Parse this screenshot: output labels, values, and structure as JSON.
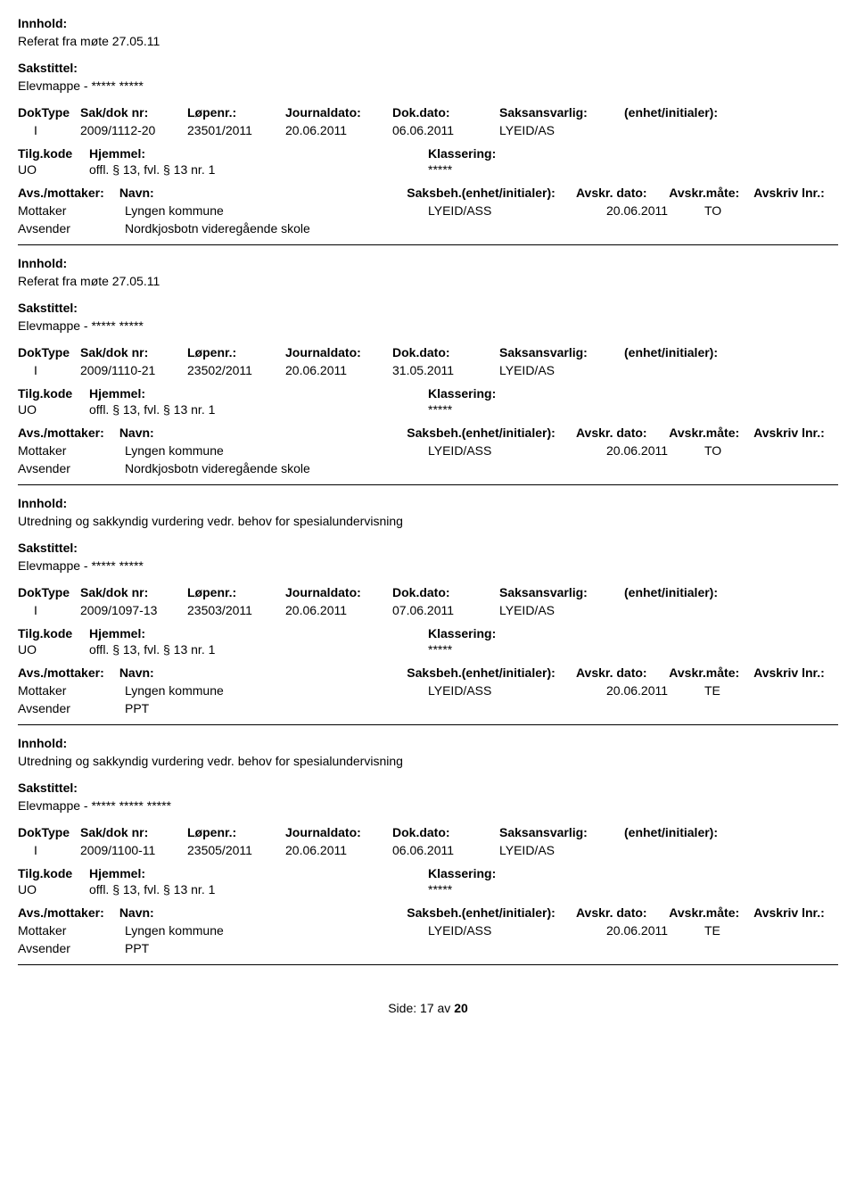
{
  "labels": {
    "innhold": "Innhold:",
    "sakstittel": "Sakstittel:",
    "doktype": "DokType",
    "sakdok": "Sak/dok nr:",
    "lopenr": "Løpenr.:",
    "journaldato": "Journaldato:",
    "dokdato": "Dok.dato:",
    "saksansvarlig": "Saksansvarlig:",
    "enhet": "(enhet/initialer):",
    "tilgkode": "Tilg.kode",
    "hjemmel": "Hjemmel:",
    "klassering": "Klassering:",
    "avsmottaker": "Avs./mottaker:",
    "navn": "Navn:",
    "saksbeh": "Saksbeh.",
    "saksbeh_enhet": "(enhet/initialer):",
    "avskrdato": "Avskr. dato:",
    "avskrmate": "Avskr.måte:",
    "avskrlnr": "Avskriv lnr.:"
  },
  "records": [
    {
      "innhold": "Referat fra møte 27.05.11",
      "sakstittel": "Elevmappe - ***** *****",
      "doktype": "I",
      "sakdok": "2009/1112-20",
      "lopenr": "23501/2011",
      "journaldato": "20.06.2011",
      "dokdato": "06.06.2011",
      "saksansvarlig": "LYEID/AS",
      "enhet": "",
      "tilgkode": "UO",
      "hjemmel": "offl. § 13, fvl. § 13 nr. 1",
      "klassering": "*****",
      "parties": [
        {
          "role": "Mottaker",
          "navn": "Lyngen kommune",
          "saksbeh": "LYEID/ASS",
          "avskrdato": "20.06.2011",
          "avskrmate": "TO"
        },
        {
          "role": "Avsender",
          "navn": "Nordkjosbotn videregående skole",
          "saksbeh": "",
          "avskrdato": "",
          "avskrmate": ""
        }
      ]
    },
    {
      "innhold": "Referat fra møte 27.05.11",
      "sakstittel": "Elevmappe - ***** *****",
      "doktype": "I",
      "sakdok": "2009/1110-21",
      "lopenr": "23502/2011",
      "journaldato": "20.06.2011",
      "dokdato": "31.05.2011",
      "saksansvarlig": "LYEID/AS",
      "enhet": "",
      "tilgkode": "UO",
      "hjemmel": "offl. § 13, fvl. § 13 nr. 1",
      "klassering": "*****",
      "parties": [
        {
          "role": "Mottaker",
          "navn": "Lyngen kommune",
          "saksbeh": "LYEID/ASS",
          "avskrdato": "20.06.2011",
          "avskrmate": "TO"
        },
        {
          "role": "Avsender",
          "navn": "Nordkjosbotn videregående skole",
          "saksbeh": "",
          "avskrdato": "",
          "avskrmate": ""
        }
      ]
    },
    {
      "innhold": "Utredning og sakkyndig vurdering vedr. behov for spesialundervisning",
      "sakstittel": "Elevmappe - ***** *****",
      "doktype": "I",
      "sakdok": "2009/1097-13",
      "lopenr": "23503/2011",
      "journaldato": "20.06.2011",
      "dokdato": "07.06.2011",
      "saksansvarlig": "LYEID/AS",
      "enhet": "",
      "tilgkode": "UO",
      "hjemmel": "offl. § 13, fvl. § 13 nr. 1",
      "klassering": "*****",
      "parties": [
        {
          "role": "Mottaker",
          "navn": "Lyngen kommune",
          "saksbeh": "LYEID/ASS",
          "avskrdato": "20.06.2011",
          "avskrmate": "TE"
        },
        {
          "role": "Avsender",
          "navn": "PPT",
          "saksbeh": "",
          "avskrdato": "",
          "avskrmate": ""
        }
      ]
    },
    {
      "innhold": "Utredning og sakkyndig vurdering vedr. behov for spesialundervisning",
      "sakstittel": "Elevmappe - ***** ***** *****",
      "doktype": "I",
      "sakdok": "2009/1100-11",
      "lopenr": "23505/2011",
      "journaldato": "20.06.2011",
      "dokdato": "06.06.2011",
      "saksansvarlig": "LYEID/AS",
      "enhet": "",
      "tilgkode": "UO",
      "hjemmel": "offl. § 13, fvl. § 13 nr. 1",
      "klassering": "*****",
      "parties": [
        {
          "role": "Mottaker",
          "navn": "Lyngen kommune",
          "saksbeh": "LYEID/ASS",
          "avskrdato": "20.06.2011",
          "avskrmate": "TE"
        },
        {
          "role": "Avsender",
          "navn": "PPT",
          "saksbeh": "",
          "avskrdato": "",
          "avskrmate": ""
        }
      ]
    }
  ],
  "footer": {
    "side_label": "Side:",
    "page": "17",
    "av": "av",
    "total": "20"
  }
}
